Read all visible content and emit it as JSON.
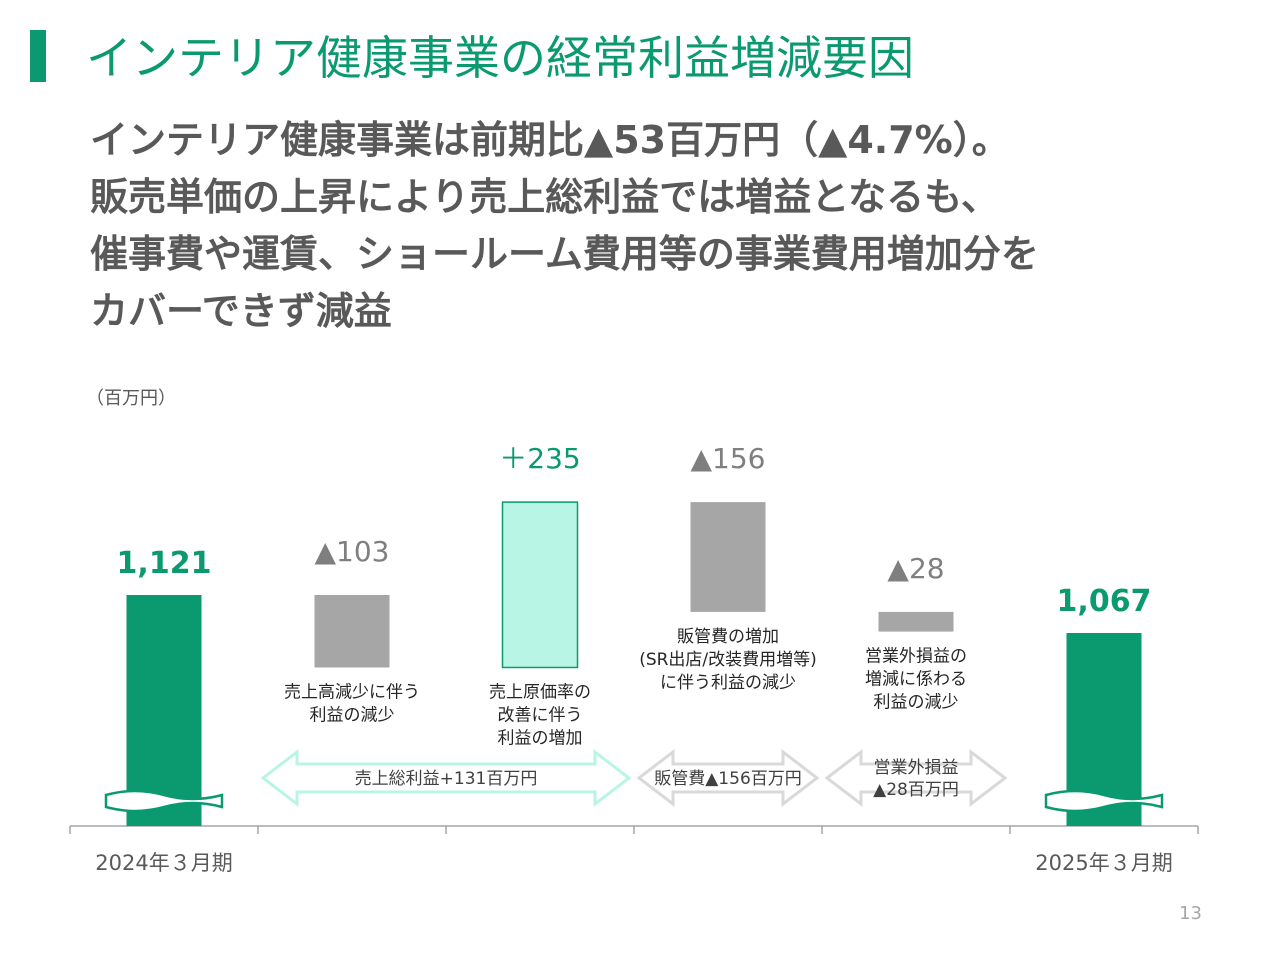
{
  "slide": {
    "title": "インテリア健康事業の経常利益増減要因",
    "headline": [
      "インテリア健康事業は前期比▲53百万円（▲4.7%）。",
      "販売単価の上昇により売上総利益では増益となるも、",
      "催事費や運賃、ショールーム費用等の事業費用増加分を",
      "カバーできず減益"
    ],
    "unit": "（百万円）",
    "page_number": "13"
  },
  "colors": {
    "accent": "#0b9a70",
    "light_green": "#b9f5e4",
    "gray": "#a6a6a6",
    "text": "#595959"
  },
  "chart_data": {
    "type": "bar",
    "subtype": "waterfall",
    "unit": "百万円",
    "categories": [
      "2024年３月期",
      "",
      "",
      "",
      "",
      "2025年３月期"
    ],
    "bars": [
      {
        "label": "1,121",
        "kind": "total",
        "value": 1121,
        "desc": []
      },
      {
        "label": "▲103",
        "kind": "decrease",
        "value": -103,
        "desc": [
          "売上高減少に伴う",
          "利益の減少"
        ]
      },
      {
        "label": "＋235",
        "kind": "increase",
        "value": 235,
        "desc": [
          "売上原価率の",
          "改善に伴う",
          "利益の増加"
        ]
      },
      {
        "label": "▲156",
        "kind": "decrease",
        "value": -156,
        "desc": [
          "販管費の増加",
          "(SR出店/改装費用増等)",
          "に伴う利益の減少"
        ]
      },
      {
        "label": "▲28",
        "kind": "decrease",
        "value": -28,
        "desc": [
          "営業外損益の",
          "増減に係わる",
          "利益の減少"
        ]
      },
      {
        "label": "1,067",
        "kind": "total",
        "value": 1067,
        "desc": []
      }
    ],
    "groups": [
      {
        "lines": [
          "売上総利益+131百万円"
        ],
        "span": [
          1,
          2
        ],
        "style": "green"
      },
      {
        "lines": [
          "販管費▲156百万円"
        ],
        "span": [
          3,
          3
        ],
        "style": "gray"
      },
      {
        "lines": [
          "営業外損益",
          "▲28百万円"
        ],
        "span": [
          4,
          4
        ],
        "style": "gray"
      }
    ],
    "axis_break": true
  }
}
